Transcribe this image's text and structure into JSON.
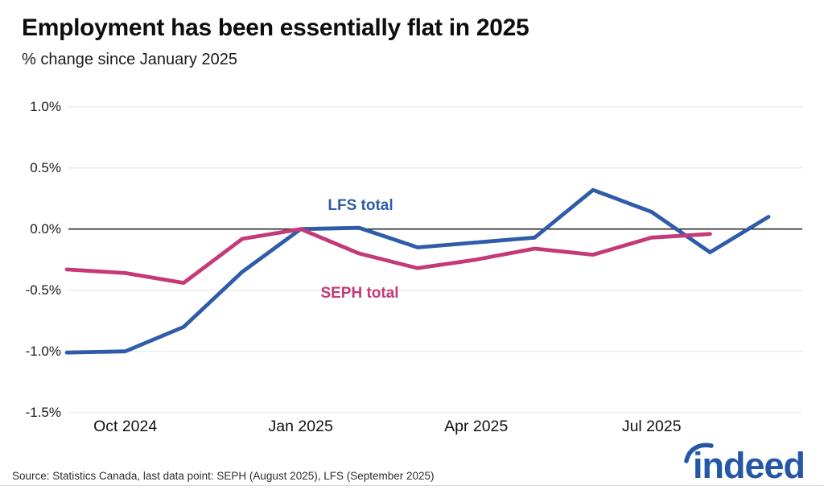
{
  "header": {
    "title": "Employment has been essentially flat in 2025",
    "subtitle": "% change since January 2025"
  },
  "footer": {
    "source": "Source: Statistics Canada, last data point: SEPH (August 2025), LFS (September 2025)",
    "logo_text": "indeed"
  },
  "colors": {
    "lfs_blue": "#2e5ca8",
    "seph_pink": "#c43a78",
    "grid": "#ececec",
    "zero_line": "#2b2b2b",
    "logo_blue": "#2557a7",
    "text": "#111111"
  },
  "chart_data": {
    "type": "line",
    "title": "Employment has been essentially flat in 2025",
    "subtitle": "% change since January 2025",
    "xlabel": "",
    "ylabel": "% change since January 2025",
    "x": [
      "Sep 2024",
      "Oct 2024",
      "Nov 2024",
      "Dec 2024",
      "Jan 2025",
      "Feb 2025",
      "Mar 2025",
      "Apr 2025",
      "May 2025",
      "Jun 2025",
      "Jul 2025",
      "Aug 2025",
      "Sep 2025"
    ],
    "series": [
      {
        "name": "LFS total",
        "color": "#2e5ca8",
        "values": [
          -1.01,
          -1.0,
          -0.8,
          -0.35,
          0.0,
          0.01,
          -0.15,
          -0.11,
          -0.07,
          0.32,
          0.14,
          -0.19,
          0.1
        ]
      },
      {
        "name": "SEPH total",
        "color": "#c43a78",
        "values": [
          -0.33,
          -0.36,
          -0.44,
          -0.08,
          0.0,
          -0.2,
          -0.32,
          -0.25,
          -0.16,
          -0.21,
          -0.07,
          -0.04
        ]
      }
    ],
    "y_ticks": [
      {
        "label": "1.0%",
        "value": 1.0
      },
      {
        "label": "0.5%",
        "value": 0.5
      },
      {
        "label": "0.0%",
        "value": 0.0
      },
      {
        "label": "-0.5%",
        "value": -0.5
      },
      {
        "label": "-1.0%",
        "value": -1.0
      },
      {
        "label": "-1.5%",
        "value": -1.5
      }
    ],
    "x_ticks": [
      {
        "label": "Oct 2024",
        "index": 1
      },
      {
        "label": "Jan 2025",
        "index": 4
      },
      {
        "label": "Apr 2025",
        "index": 7
      },
      {
        "label": "Jul 2025",
        "index": 10
      }
    ],
    "ylim": [
      -1.5,
      1.0
    ],
    "grid": true,
    "zero_line": true,
    "legend_position": "inline-labels",
    "series_labels": [
      {
        "text": "LFS total",
        "x": 448,
        "y": 256,
        "color": "#2e5ca8"
      },
      {
        "text": "SEPH total",
        "x": 447,
        "y": 365,
        "color": "#c43a78"
      }
    ]
  }
}
